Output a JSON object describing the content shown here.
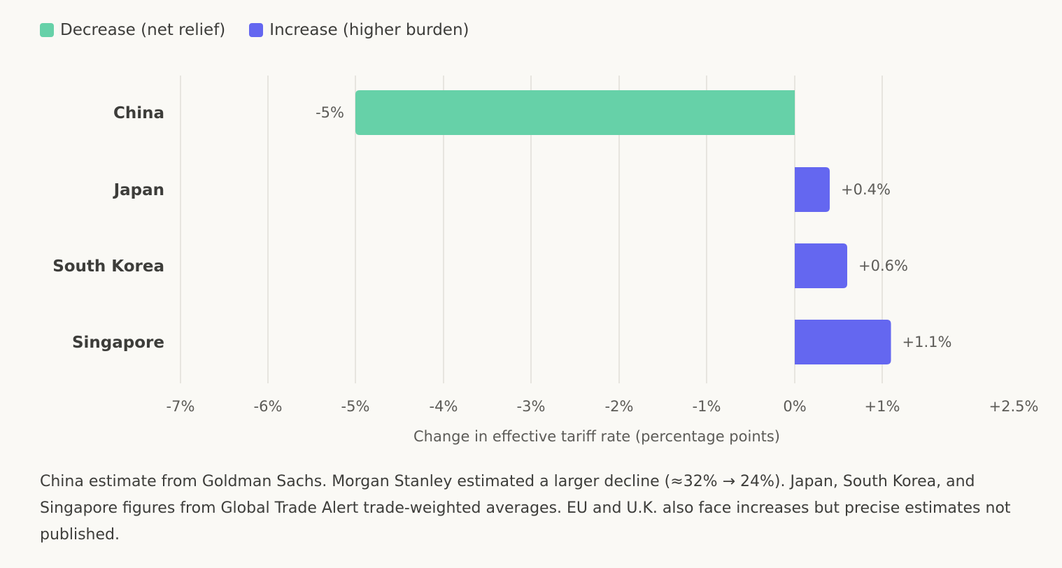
{
  "legend": {
    "items": [
      {
        "label": "Decrease (net relief)",
        "color": "#66d1a8"
      },
      {
        "label": "Increase (higher burden)",
        "color": "#6467f0"
      }
    ]
  },
  "chart_data": {
    "type": "bar",
    "orientation": "horizontal",
    "categories": [
      "China",
      "Japan",
      "South Korea",
      "Singapore"
    ],
    "values": [
      -5,
      0.4,
      0.6,
      1.1
    ],
    "value_labels": [
      "-5%",
      "+0.4%",
      "+0.6%",
      "+1.1%"
    ],
    "colors": [
      "#66d1a8",
      "#6467f0",
      "#6467f0",
      "#6467f0"
    ],
    "xlabel": "Change in effective tariff rate (percentage points)",
    "ylabel": "",
    "xlim": [
      -7,
      2.5
    ],
    "xticks": [
      -7,
      -6,
      -5,
      -4,
      -3,
      -2,
      -1,
      0,
      1,
      2.5
    ],
    "xtick_labels": [
      "-7%",
      "-6%",
      "-5%",
      "-4%",
      "-3%",
      "-2%",
      "-1%",
      "0%",
      "+1%",
      "+2.5%"
    ],
    "grid": true,
    "legend_position": "top-left"
  },
  "footnote": "China estimate from Goldman Sachs. Morgan Stanley estimated a larger decline (≈32% → 24%). Japan, South Korea, and Singapore figures from Global Trade Alert trade-weighted averages. EU and U.K. also face increases but precise estimates not published."
}
